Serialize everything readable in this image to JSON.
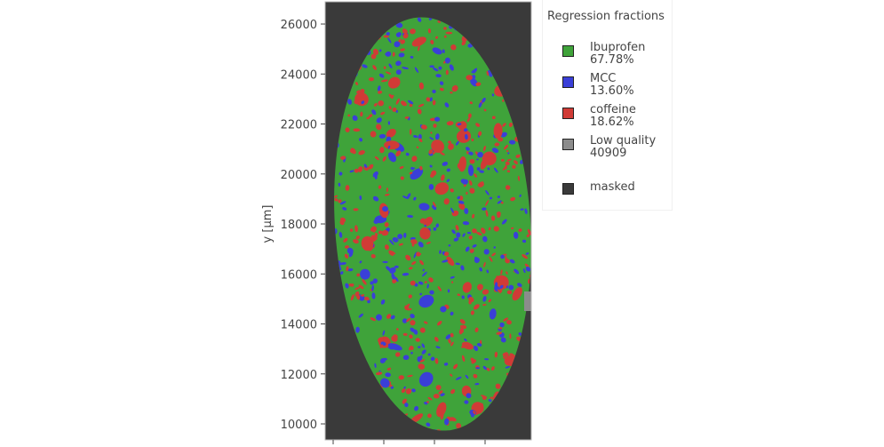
{
  "chart_data": {
    "type": "heatmap",
    "ylabel": "y [µm]",
    "xlabel": "",
    "ylim": [
      9360,
      26890
    ],
    "y_ticks": [
      "10000",
      "12000",
      "14000",
      "16000",
      "18000",
      "20000",
      "22000",
      "24000",
      "26000"
    ],
    "y_tick_values": [
      10000,
      12000,
      14000,
      16000,
      18000,
      20000,
      22000,
      24000,
      26000
    ],
    "x_tick_count": 4,
    "grid": false,
    "legend_placement": "right",
    "legend": {
      "title": "Regression fractions",
      "entries": [
        {
          "name": "Ibuprofen",
          "value": "67.78%",
          "color": "#3fa33a"
        },
        {
          "name": "MCC",
          "value": "13.60%",
          "color": "#3a3fd8"
        },
        {
          "name": "coffeine",
          "value": "18.62%",
          "color": "#d03b36"
        },
        {
          "name": "Low quality",
          "value": "40909",
          "color": "#8c8c8c"
        },
        {
          "name": "masked",
          "value": "",
          "color": "#3a3a3a"
        }
      ]
    },
    "fractions": {
      "Ibuprofen": 67.78,
      "MCC": 13.6,
      "coffeine": 18.62
    },
    "sample_extent_y": [
      9700,
      26250
    ]
  }
}
